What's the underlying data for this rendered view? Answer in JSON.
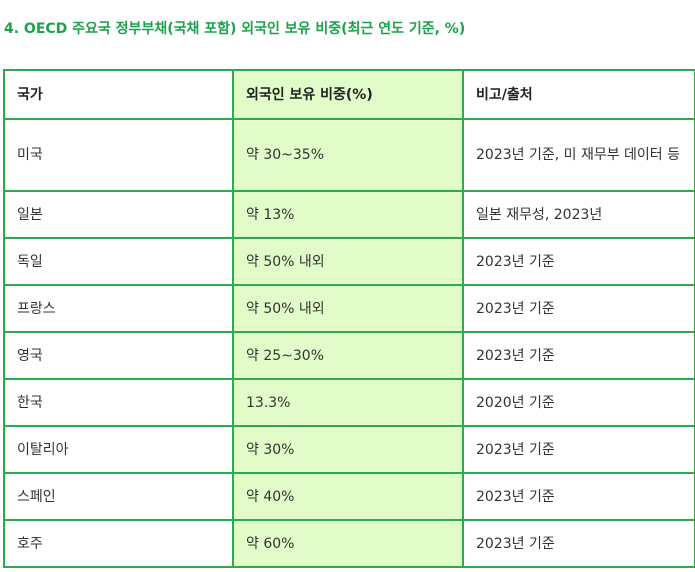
{
  "heading": "4. OECD 주요국 정부부채(국채 포함) 외국인 보유 비중(최근 연도 기준, %)",
  "table": {
    "headers": [
      "국가",
      "외국인 보유 비중(%)",
      "비고/출처"
    ],
    "rows": [
      [
        "미국",
        "약 30~35%",
        "2023년 기준, 미 재무부 데이터 등"
      ],
      [
        "일본",
        "약 13%",
        "일본 재무성, 2023년"
      ],
      [
        "독일",
        "약 50% 내외",
        "2023년 기준"
      ],
      [
        "프랑스",
        "약 50% 내외",
        "2023년 기준"
      ],
      [
        "영국",
        "약 25~30%",
        "2023년 기준"
      ],
      [
        "한국",
        "13.3%",
        "2020년 기준"
      ],
      [
        "이탈리아",
        "약 30%",
        "2023년 기준"
      ],
      [
        "스페인",
        "약 40%",
        "2023년 기준"
      ],
      [
        "호주",
        "약 60%",
        "2023년 기준"
      ]
    ]
  },
  "colors": {
    "heading": "#1aa34a",
    "border": "#2eaa4e",
    "highlight_column": "#e1fcc8"
  }
}
